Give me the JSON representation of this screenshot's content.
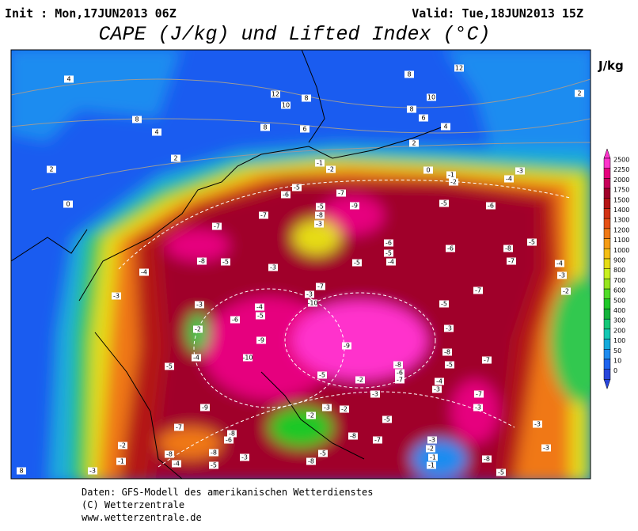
{
  "header": {
    "init": "Init : Mon,17JUN2013 06Z",
    "valid": "Valid: Tue,18JUN2013 15Z",
    "title": "CAPE (J/kg) und Lifted Index (°C)"
  },
  "colorbar": {
    "unit": "J/kg",
    "labels": [
      2500,
      2250,
      2000,
      1750,
      1500,
      1400,
      1300,
      1200,
      1100,
      1000,
      900,
      800,
      700,
      600,
      500,
      400,
      300,
      200,
      100,
      50,
      10,
      0
    ],
    "colors": [
      "#ff33cc",
      "#e6007e",
      "#c8005a",
      "#a0002a",
      "#b41414",
      "#d23214",
      "#e65014",
      "#f07814",
      "#f59b14",
      "#f5be14",
      "#e6dc14",
      "#c8f01e",
      "#96e61e",
      "#50dc28",
      "#1ec828",
      "#14b43c",
      "#14c878",
      "#14c8b4",
      "#14aadc",
      "#1e8cf0",
      "#1e64f0",
      "#2846dc"
    ]
  },
  "map": {
    "li_labels": [
      "4",
      "8",
      "4",
      "2",
      "2",
      "0",
      "12",
      "10",
      "8",
      "8",
      "6",
      "8",
      "12",
      "10",
      "8",
      "6",
      "4",
      "2",
      "0",
      "-1",
      "-2",
      "-1",
      "-2",
      "-3",
      "-4",
      "-5",
      "-7",
      "-6",
      "-5",
      "-8",
      "-3",
      "-9",
      "-5",
      "-6",
      "-7",
      "-7",
      "-6",
      "-5",
      "-4",
      "-5",
      "-6",
      "-8",
      "-5",
      "-7",
      "-4",
      "-3",
      "-2",
      "-8",
      "-5",
      "-4",
      "-3",
      "-3",
      "-3",
      "-7",
      "-3",
      "-10",
      "-4",
      "-5",
      "-6",
      "-2",
      "-5",
      "-7",
      "-3",
      "-9",
      "-9",
      "-8",
      "-10",
      "-4",
      "-5",
      "-8",
      "-6",
      "-7",
      "-5",
      "-7",
      "-5",
      "-2",
      "-3",
      "-4",
      "-3",
      "-7",
      "-9",
      "-2",
      "-3",
      "-2",
      "-5",
      "-3",
      "-7",
      "-2",
      "-8",
      "-6",
      "-8",
      "-8",
      "-3",
      "-1",
      "-3",
      "8",
      "-8",
      "-7",
      "-3",
      "-2",
      "-1",
      "-1",
      "-5",
      "-8",
      "-8",
      "-5",
      "-4",
      "-5",
      "-3",
      "2",
      "-3"
    ]
  },
  "footer": {
    "line1": "Daten: GFS-Modell des amerikanischen Wetterdienstes",
    "line2": "(C) Wetterzentrale",
    "line3": "www.wetterzentrale.de"
  }
}
